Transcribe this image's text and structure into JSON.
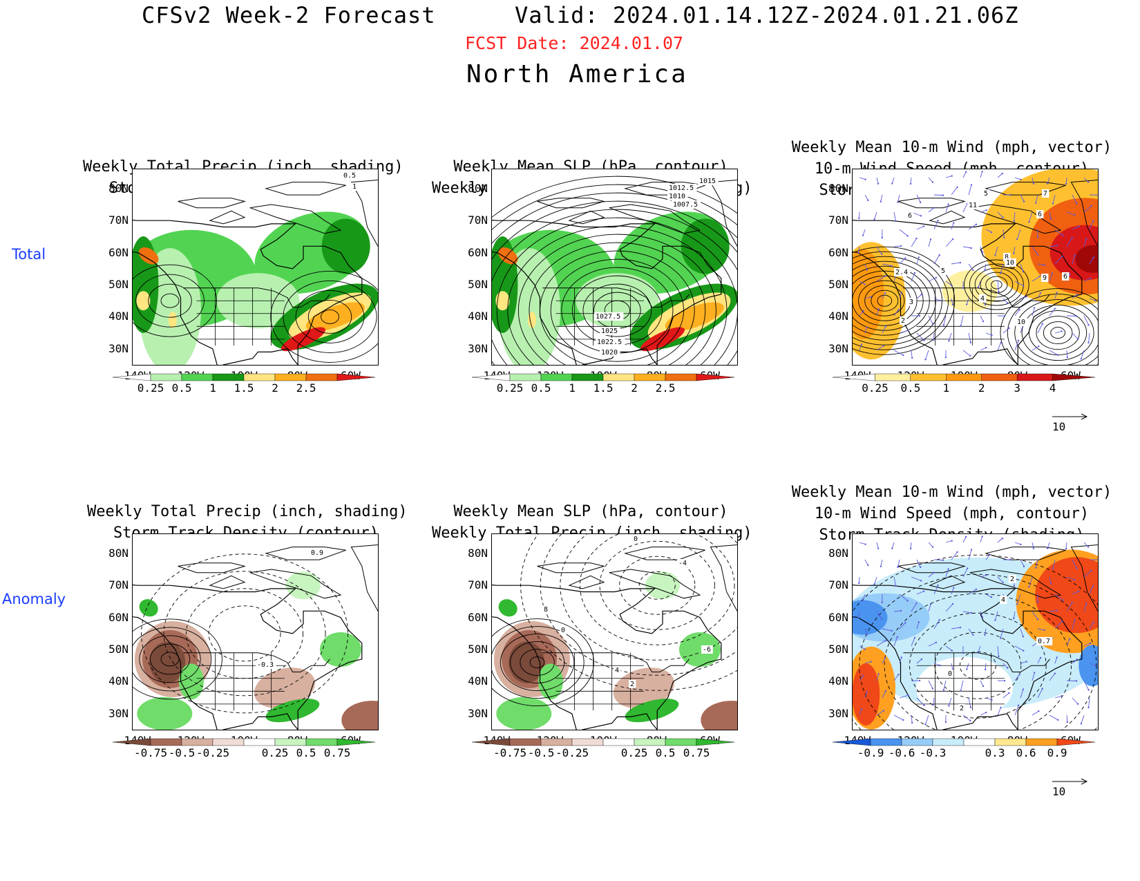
{
  "header": {
    "title_left": "CFSv2 Week-2 Forecast",
    "title_right": "Valid: 2024.01.14.12Z-2024.01.21.06Z",
    "fcst_date": "FCST Date: 2024.01.07",
    "region": "North America"
  },
  "row_labels": [
    "Total",
    "Anomaly"
  ],
  "panel_titles": {
    "total_precip": [
      "Weekly Total Precip (inch, shading)",
      "Storm Track Density (contour)"
    ],
    "total_slp": [
      "Weekly Mean SLP (hPa, contour)",
      "Weekly Total Precip (inch, shading)"
    ],
    "total_wind": [
      "Weekly Mean 10-m Wind (mph, vector)",
      "10-m Wind Speed (mph, contour)",
      "Storm Track Density (shading)"
    ],
    "anom_precip": [
      "Weekly Total Precip (inch, shading)",
      "Storm Track Density (contour)"
    ],
    "anom_slp": [
      "Weekly Mean SLP (hPa, contour)",
      "Weekly Total Precip (inch, shading)"
    ],
    "anom_wind": [
      "Weekly Mean 10-m Wind (mph, vector)",
      "10-m Wind Speed (mph, contour)",
      "Storm Track Density (shading)"
    ]
  },
  "lat_labels": [
    "80N",
    "70N",
    "60N",
    "50N",
    "40N",
    "30N"
  ],
  "lon_labels": [
    "140W",
    "120W",
    "100W",
    "80W",
    "60W"
  ],
  "colorbars": {
    "total_precip": {
      "labels": [
        "0.25",
        "0.5",
        "1",
        "1.5",
        "2",
        "2.5"
      ],
      "colors": [
        "#ffffff",
        "#b8f0b0",
        "#52d452",
        "#189818",
        "#ffe680",
        "#ffb020",
        "#f07010",
        "#e01818"
      ]
    },
    "total_density": {
      "labels": [
        "0.25",
        "0.5",
        "1",
        "2",
        "3",
        "4"
      ],
      "colors": [
        "#ffffff",
        "#fff0a0",
        "#ffc030",
        "#ff9a10",
        "#f06010",
        "#d81818",
        "#a00808"
      ]
    },
    "anom_precip": {
      "labels": [
        "-0.75",
        "-0.5",
        "-0.25",
        "0.25",
        "0.5",
        "0.75"
      ],
      "colors": [
        "#7a4a3a",
        "#a86a58",
        "#d8b0a0",
        "#f0dcd4",
        "#ffffff",
        "#c8f4c0",
        "#70dc6a",
        "#30b830"
      ]
    },
    "anom_density": {
      "labels": [
        "-0.9",
        "-0.6",
        "-0.3",
        "0.3",
        "0.6",
        "0.9"
      ],
      "colors": [
        "#1858d8",
        "#4a94f0",
        "#96ccf8",
        "#c8ecfa",
        "#ffffff",
        "#ffe890",
        "#ffa020",
        "#f04818"
      ]
    }
  },
  "contour_labels": {
    "total_precip": [
      "0.5",
      "1"
    ],
    "total_slp": [
      "1015",
      "1012.5",
      "1010",
      "1007.5",
      "1027.5",
      "1025",
      "1022.5",
      "1020"
    ],
    "total_wind": [
      "7",
      "6",
      "5",
      "11",
      "6",
      "8",
      "10",
      "2.4",
      "5",
      "9",
      "6",
      "3",
      "2",
      "4",
      "10"
    ],
    "anom_precip": [
      "0.9",
      "-0.3"
    ],
    "anom_slp": [
      "0",
      "-4",
      "8",
      "0",
      "4",
      "2",
      "-6"
    ],
    "anom_wind": [
      "2",
      "4",
      "0",
      "0.7",
      "2"
    ]
  },
  "vector_reference": "10"
}
